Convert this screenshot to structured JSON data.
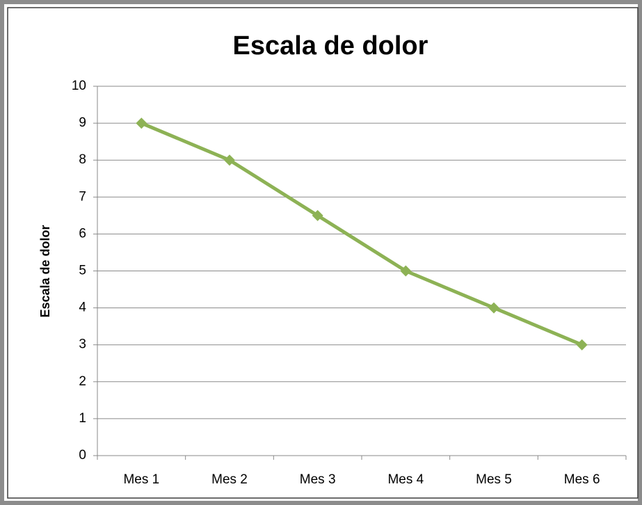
{
  "chart_data": {
    "type": "line",
    "title": "Escala de dolor",
    "y_label": "Escala de dolor",
    "categories": [
      "Mes 1",
      "Mes 2",
      "Mes 3",
      "Mes 4",
      "Mes 5",
      "Mes 6"
    ],
    "values": [
      9,
      8,
      6.5,
      5,
      4,
      3
    ],
    "color": "#8db255",
    "ylim": [
      0,
      10
    ],
    "yticks": [
      0,
      1,
      2,
      3,
      4,
      5,
      6,
      7,
      8,
      9,
      10
    ],
    "grid": true
  }
}
